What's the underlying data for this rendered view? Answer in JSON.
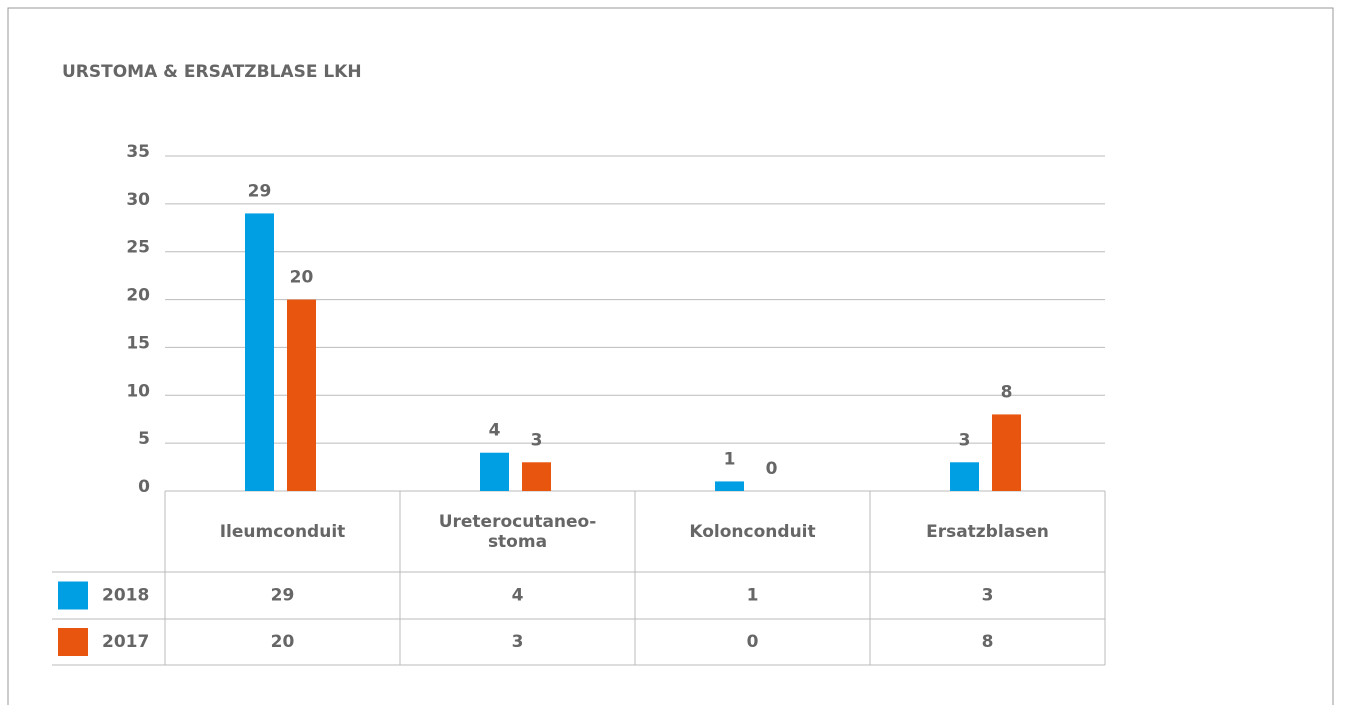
{
  "chart_data": {
    "type": "bar",
    "title": "URSTOMA & ERSATZBLASE LKH",
    "categories": [
      "Ileumconduit",
      "Ureterocutaneo-stoma",
      "Kolonconduit",
      "Ersatzblasen"
    ],
    "series": [
      {
        "name": "2018",
        "color": "#009fe3",
        "values": [
          29,
          4,
          1,
          3
        ]
      },
      {
        "name": "2017",
        "color": "#e8550e",
        "values": [
          20,
          3,
          0,
          8
        ]
      }
    ],
    "ylim": [
      0,
      35
    ],
    "yticks": [
      0,
      5,
      10,
      15,
      20,
      25,
      30,
      35
    ],
    "grid": true
  }
}
